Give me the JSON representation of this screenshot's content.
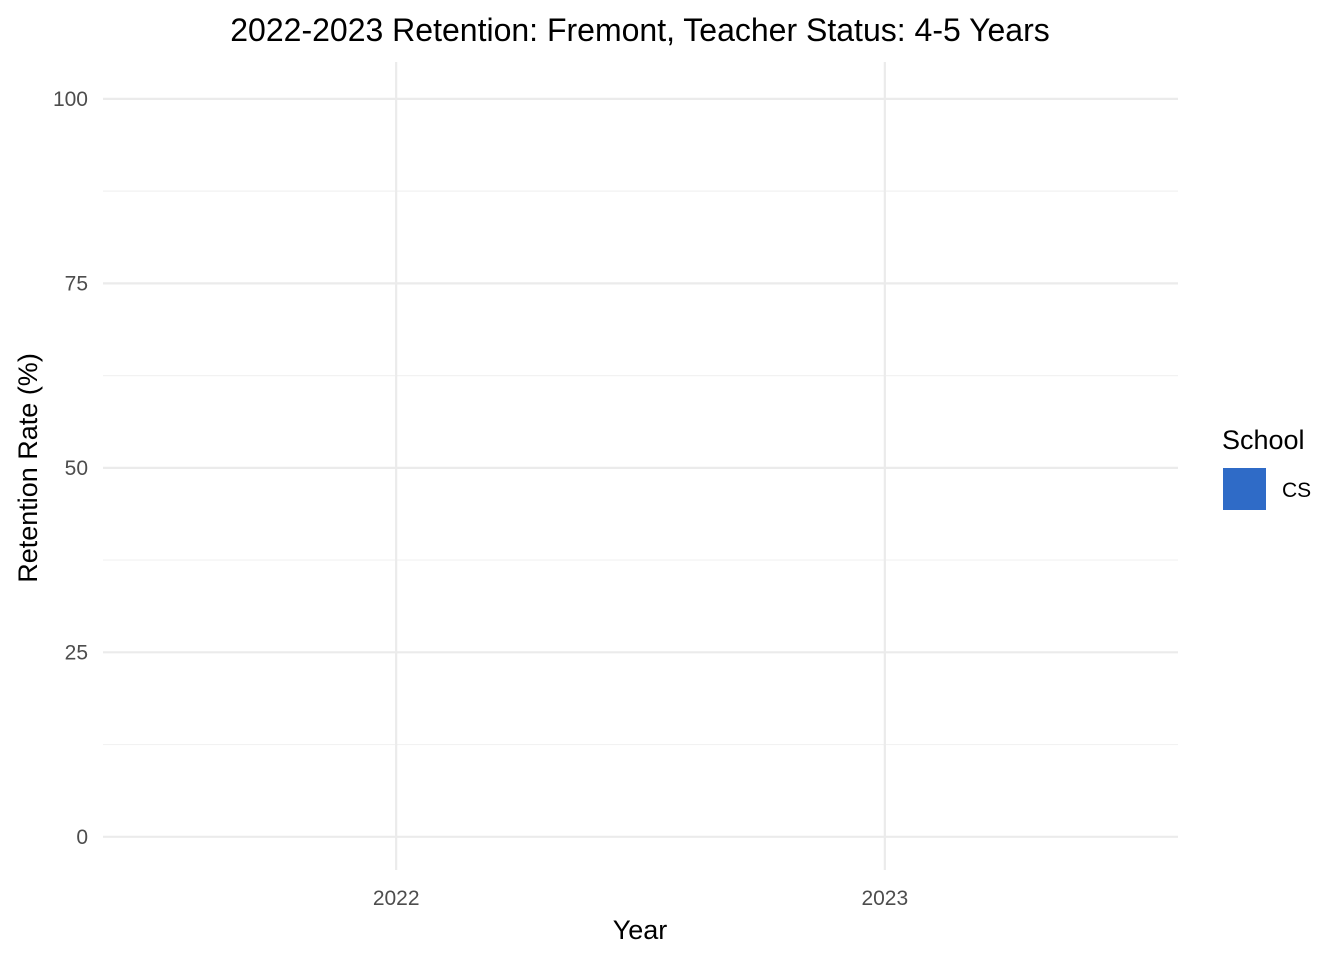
{
  "chart_data": {
    "type": "bar",
    "title": "2022-2023 Retention: Fremont, Teacher Status: 4-5 Years",
    "xlabel": "Year",
    "ylabel": "Retention Rate (%)",
    "categories": [
      "2022",
      "2023"
    ],
    "y_ticks": [
      0,
      25,
      50,
      75,
      100
    ],
    "ylim": [
      -4.5,
      105
    ],
    "grid": true,
    "legend": {
      "title": "School",
      "placement": "right",
      "entries": [
        {
          "label": "CS",
          "color": "#2f6bc7"
        }
      ]
    },
    "series": [
      {
        "name": "CS",
        "color": "#2f6bc7",
        "values": [
          null,
          null
        ]
      }
    ]
  }
}
